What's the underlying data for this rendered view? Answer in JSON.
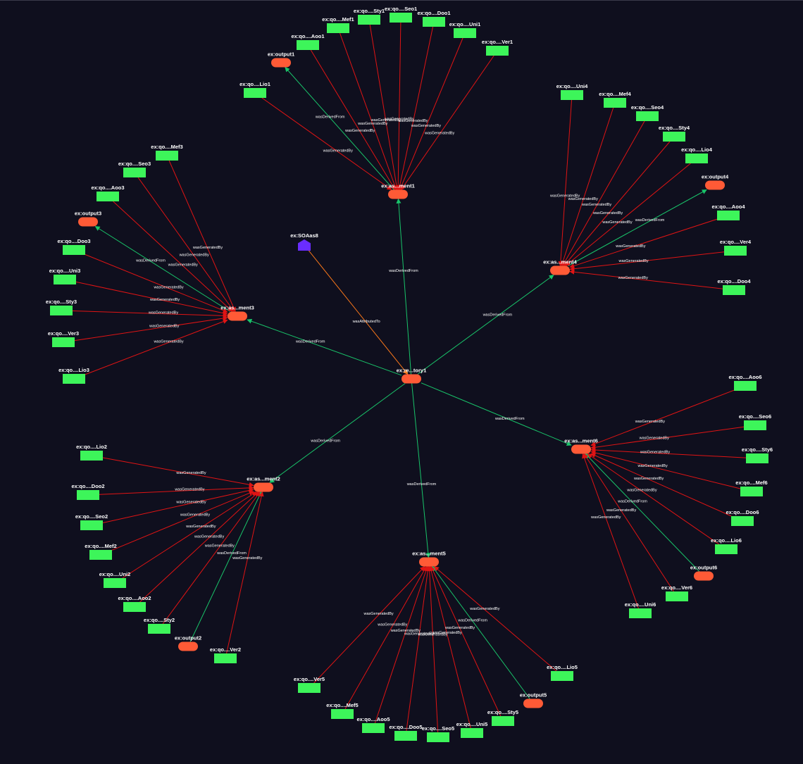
{
  "colors": {
    "background": "#0f0f1e",
    "entity_fill": "#3df55a",
    "activity_fill": "#ff5a36",
    "agent_fill": "#6a2dff",
    "edge_generated": "#e01414",
    "edge_derived": "#19c46a",
    "edge_attributed": "#ff7a1a",
    "label": "#ffffff"
  },
  "nodes": [
    {
      "id": "factory1",
      "label": "ex:re...tory1",
      "type": "activity"
    },
    {
      "id": "agent",
      "label": "ex:SOAas8",
      "type": "agent"
    },
    {
      "id": "a1",
      "label": "ex:as...ment1",
      "type": "activity"
    },
    {
      "id": "o1",
      "label": "ex:output1",
      "type": "activity"
    },
    {
      "id": "e1_lio",
      "label": "ex:qo....Lio1",
      "type": "entity"
    },
    {
      "id": "e1_aoo",
      "label": "ex:qo....Aoo1",
      "type": "entity"
    },
    {
      "id": "e1_mef",
      "label": "ex:qo....Mef1",
      "type": "entity"
    },
    {
      "id": "e1_sty",
      "label": "ex:qo....Sty1",
      "type": "entity"
    },
    {
      "id": "e1_seo",
      "label": "ex:qo....Seo1",
      "type": "entity"
    },
    {
      "id": "e1_doo",
      "label": "ex:qo....Doo1",
      "type": "entity"
    },
    {
      "id": "e1_uni",
      "label": "ex:qo....Uni1",
      "type": "entity"
    },
    {
      "id": "e1_ver",
      "label": "ex:qo....Ver1",
      "type": "entity"
    },
    {
      "id": "a3",
      "label": "ex:as...ment3",
      "type": "activity"
    },
    {
      "id": "o3",
      "label": "ex:output3",
      "type": "activity"
    },
    {
      "id": "e3_mef",
      "label": "ex:qo....Mef3",
      "type": "entity"
    },
    {
      "id": "e3_seo",
      "label": "ex:qo....Seo3",
      "type": "entity"
    },
    {
      "id": "e3_aoo",
      "label": "ex:qo....Aoo3",
      "type": "entity"
    },
    {
      "id": "e3_doo",
      "label": "ex:qo....Doo3",
      "type": "entity"
    },
    {
      "id": "e3_uni",
      "label": "ex:qo....Uni3",
      "type": "entity"
    },
    {
      "id": "e3_sty",
      "label": "ex:qo....Sty3",
      "type": "entity"
    },
    {
      "id": "e3_ver",
      "label": "ex:qo....Ver3",
      "type": "entity"
    },
    {
      "id": "e3_lio",
      "label": "ex:qo....Lio3",
      "type": "entity"
    },
    {
      "id": "a4",
      "label": "ex:as...ment4",
      "type": "activity"
    },
    {
      "id": "o4",
      "label": "ex:output4",
      "type": "activity"
    },
    {
      "id": "e4_uni",
      "label": "ex:qo....Uni4",
      "type": "entity"
    },
    {
      "id": "e4_mef",
      "label": "ex:qo....Mef4",
      "type": "entity"
    },
    {
      "id": "e4_seo",
      "label": "ex:qo....Seo4",
      "type": "entity"
    },
    {
      "id": "e4_sty",
      "label": "ex:qo....Sty4",
      "type": "entity"
    },
    {
      "id": "e4_lio",
      "label": "ex:qo....Lio4",
      "type": "entity"
    },
    {
      "id": "e4_aoo",
      "label": "ex:qo....Aoo4",
      "type": "entity"
    },
    {
      "id": "e4_ver",
      "label": "ex:qo....Ver4",
      "type": "entity"
    },
    {
      "id": "e4_doo",
      "label": "ex:qo....Doo4",
      "type": "entity"
    },
    {
      "id": "a2",
      "label": "ex:as...ment2",
      "type": "activity"
    },
    {
      "id": "o2",
      "label": "ex:output2",
      "type": "activity"
    },
    {
      "id": "e2_lio",
      "label": "ex:qo....Lio2",
      "type": "entity"
    },
    {
      "id": "e2_doo",
      "label": "ex:qo....Doo2",
      "type": "entity"
    },
    {
      "id": "e2_seo",
      "label": "ex:qo....Seo2",
      "type": "entity"
    },
    {
      "id": "e2_mef",
      "label": "ex:qo....Mef2",
      "type": "entity"
    },
    {
      "id": "e2_uni",
      "label": "ex:qo....Uni2",
      "type": "entity"
    },
    {
      "id": "e2_aoo",
      "label": "ex:qo....Aoo2",
      "type": "entity"
    },
    {
      "id": "e2_sty",
      "label": "ex:qo....Sty2",
      "type": "entity"
    },
    {
      "id": "e2_ver",
      "label": "ex:qo....Ver2",
      "type": "entity"
    },
    {
      "id": "a5",
      "label": "ex:as...ment5",
      "type": "activity"
    },
    {
      "id": "o5",
      "label": "ex:output5",
      "type": "activity"
    },
    {
      "id": "e5_lio",
      "label": "ex:qo....Lio5",
      "type": "entity"
    },
    {
      "id": "e5_ver",
      "label": "ex:qo....Ver5",
      "type": "entity"
    },
    {
      "id": "e5_mef",
      "label": "ex:qo....Mef5",
      "type": "entity"
    },
    {
      "id": "e5_aoo",
      "label": "ex:qo....Aoo5",
      "type": "entity"
    },
    {
      "id": "e5_doo",
      "label": "ex:qo....Doo5",
      "type": "entity"
    },
    {
      "id": "e5_seo",
      "label": "ex:qo....Seo5",
      "type": "entity"
    },
    {
      "id": "e5_uni",
      "label": "ex:qo....Uni5",
      "type": "entity"
    },
    {
      "id": "e5_sty",
      "label": "ex:qo....Sty5",
      "type": "entity"
    },
    {
      "id": "a6",
      "label": "ex:as...ment6",
      "type": "activity"
    },
    {
      "id": "o6",
      "label": "ex:output6",
      "type": "activity"
    },
    {
      "id": "e6_aoo",
      "label": "ex:qo....Aoo6",
      "type": "entity"
    },
    {
      "id": "e6_seo",
      "label": "ex:qo....Seo6",
      "type": "entity"
    },
    {
      "id": "e6_sty",
      "label": "ex:qo....Sty6",
      "type": "entity"
    },
    {
      "id": "e6_mef",
      "label": "ex:qo....Mef6",
      "type": "entity"
    },
    {
      "id": "e6_doo",
      "label": "ex:qo....Doo6",
      "type": "entity"
    },
    {
      "id": "e6_lio",
      "label": "ex:qo....Lio6",
      "type": "entity"
    },
    {
      "id": "e6_ver",
      "label": "ex:qo....Ver6",
      "type": "entity"
    },
    {
      "id": "e6_uni",
      "label": "ex:qo....Uni6",
      "type": "entity"
    }
  ],
  "edges": [
    {
      "source": "agent",
      "target": "factory1",
      "label": "wasAttributedTo",
      "kind": "attributed"
    },
    {
      "source": "factory1",
      "target": "a1",
      "label": "wasDerivedFrom",
      "kind": "derived"
    },
    {
      "source": "factory1",
      "target": "a3",
      "label": "wasDerivedFrom",
      "kind": "derived"
    },
    {
      "source": "factory1",
      "target": "a4",
      "label": "wasDerivedFrom",
      "kind": "derived"
    },
    {
      "source": "factory1",
      "target": "a2",
      "label": "wasDerivedFrom",
      "kind": "derived"
    },
    {
      "source": "factory1",
      "target": "a5",
      "label": "wasDerivedFrom",
      "kind": "derived"
    },
    {
      "source": "factory1",
      "target": "a6",
      "label": "wasDerivedFrom",
      "kind": "derived"
    },
    {
      "source": "a1",
      "target": "o1",
      "label": "wasDerivedFrom",
      "kind": "derived"
    },
    {
      "source": "e1_lio",
      "target": "a1",
      "label": "wasGeneratedBy",
      "kind": "generated"
    },
    {
      "source": "e1_aoo",
      "target": "a1",
      "label": "wasGeneratedBy",
      "kind": "generated"
    },
    {
      "source": "e1_mef",
      "target": "a1",
      "label": "wasGeneratedBy",
      "kind": "generated"
    },
    {
      "source": "e1_sty",
      "target": "a1",
      "label": "wasGeneratedBy",
      "kind": "generated"
    },
    {
      "source": "e1_seo",
      "target": "a1",
      "label": "wasGeneratedBy",
      "kind": "generated"
    },
    {
      "source": "e1_doo",
      "target": "a1",
      "label": "wasGeneratedBy",
      "kind": "generated"
    },
    {
      "source": "e1_uni",
      "target": "a1",
      "label": "wasGeneratedBy",
      "kind": "generated"
    },
    {
      "source": "e1_ver",
      "target": "a1",
      "label": "wasGeneratedBy",
      "kind": "generated"
    },
    {
      "source": "a3",
      "target": "o3",
      "label": "wasDerivedFrom",
      "kind": "derived"
    },
    {
      "source": "e3_mef",
      "target": "a3",
      "label": "wasGeneratedBy",
      "kind": "generated"
    },
    {
      "source": "e3_seo",
      "target": "a3",
      "label": "wasGeneratedBy",
      "kind": "generated"
    },
    {
      "source": "e3_aoo",
      "target": "a3",
      "label": "wasGeneratedBy",
      "kind": "generated"
    },
    {
      "source": "e3_doo",
      "target": "a3",
      "label": "wasGeneratedBy",
      "kind": "generated"
    },
    {
      "source": "e3_uni",
      "target": "a3",
      "label": "wasGeneratedBy",
      "kind": "generated"
    },
    {
      "source": "e3_sty",
      "target": "a3",
      "label": "wasGeneratedBy",
      "kind": "generated"
    },
    {
      "source": "e3_ver",
      "target": "a3",
      "label": "wasGeneratedBy",
      "kind": "generated"
    },
    {
      "source": "e3_lio",
      "target": "a3",
      "label": "wasGeneratedBy",
      "kind": "generated"
    },
    {
      "source": "a4",
      "target": "o4",
      "label": "wasDerivedFrom",
      "kind": "derived"
    },
    {
      "source": "e4_uni",
      "target": "a4",
      "label": "wasGeneratedBy",
      "kind": "generated"
    },
    {
      "source": "e4_mef",
      "target": "a4",
      "label": "wasGeneratedBy",
      "kind": "generated"
    },
    {
      "source": "e4_seo",
      "target": "a4",
      "label": "wasGeneratedBy",
      "kind": "generated"
    },
    {
      "source": "e4_sty",
      "target": "a4",
      "label": "wasGeneratedBy",
      "kind": "generated"
    },
    {
      "source": "e4_lio",
      "target": "a4",
      "label": "wasGeneratedBy",
      "kind": "generated"
    },
    {
      "source": "e4_aoo",
      "target": "a4",
      "label": "wasGeneratedBy",
      "kind": "generated"
    },
    {
      "source": "e4_ver",
      "target": "a4",
      "label": "wasGeneratedBy",
      "kind": "generated"
    },
    {
      "source": "e4_doo",
      "target": "a4",
      "label": "wasGeneratedBy",
      "kind": "generated"
    },
    {
      "source": "o2",
      "target": "a2",
      "label": "wasDerivedFrom",
      "kind": "derived"
    },
    {
      "source": "e2_lio",
      "target": "a2",
      "label": "wasGeneratedBy",
      "kind": "generated"
    },
    {
      "source": "e2_doo",
      "target": "a2",
      "label": "wasGeneratedBy",
      "kind": "generated"
    },
    {
      "source": "e2_seo",
      "target": "a2",
      "label": "wasGeneratedBy",
      "kind": "generated"
    },
    {
      "source": "e2_mef",
      "target": "a2",
      "label": "wasGeneratedBy",
      "kind": "generated"
    },
    {
      "source": "e2_uni",
      "target": "a2",
      "label": "wasGeneratedBy",
      "kind": "generated"
    },
    {
      "source": "e2_aoo",
      "target": "a2",
      "label": "wasGeneratedBy",
      "kind": "generated"
    },
    {
      "source": "e2_sty",
      "target": "a2",
      "label": "wasGeneratedBy",
      "kind": "generated"
    },
    {
      "source": "e2_ver",
      "target": "a2",
      "label": "wasGeneratedBy",
      "kind": "generated"
    },
    {
      "source": "o5",
      "target": "a5",
      "label": "wasDerivedFrom",
      "kind": "derived"
    },
    {
      "source": "e5_lio",
      "target": "a5",
      "label": "wasGeneratedBy",
      "kind": "generated"
    },
    {
      "source": "e5_ver",
      "target": "a5",
      "label": "wasGeneratedBy",
      "kind": "generated"
    },
    {
      "source": "e5_mef",
      "target": "a5",
      "label": "wasGeneratedBy",
      "kind": "generated"
    },
    {
      "source": "e5_aoo",
      "target": "a5",
      "label": "wasGeneratedBy",
      "kind": "generated"
    },
    {
      "source": "e5_doo",
      "target": "a5",
      "label": "wasGeneratedBy",
      "kind": "generated"
    },
    {
      "source": "e5_seo",
      "target": "a5",
      "label": "wasGeneratedBy",
      "kind": "generated"
    },
    {
      "source": "e5_uni",
      "target": "a5",
      "label": "wasGeneratedBy",
      "kind": "generated"
    },
    {
      "source": "e5_sty",
      "target": "a5",
      "label": "wasGeneratedBy",
      "kind": "generated"
    },
    {
      "source": "o6",
      "target": "a6",
      "label": "wasDerivedFrom",
      "kind": "derived"
    },
    {
      "source": "e6_aoo",
      "target": "a6",
      "label": "wasGeneratedBy",
      "kind": "generated"
    },
    {
      "source": "e6_seo",
      "target": "a6",
      "label": "wasGeneratedBy",
      "kind": "generated"
    },
    {
      "source": "e6_sty",
      "target": "a6",
      "label": "wasGeneratedBy",
      "kind": "generated"
    },
    {
      "source": "e6_mef",
      "target": "a6",
      "label": "wasGeneratedBy",
      "kind": "generated"
    },
    {
      "source": "e6_doo",
      "target": "a6",
      "label": "wasGeneratedBy",
      "kind": "generated"
    },
    {
      "source": "e6_lio",
      "target": "a6",
      "label": "wasGeneratedBy",
      "kind": "generated"
    },
    {
      "source": "e6_ver",
      "target": "a6",
      "label": "wasGeneratedBy",
      "kind": "generated"
    },
    {
      "source": "e6_uni",
      "target": "a6",
      "label": "wasGeneratedBy",
      "kind": "generated"
    }
  ]
}
